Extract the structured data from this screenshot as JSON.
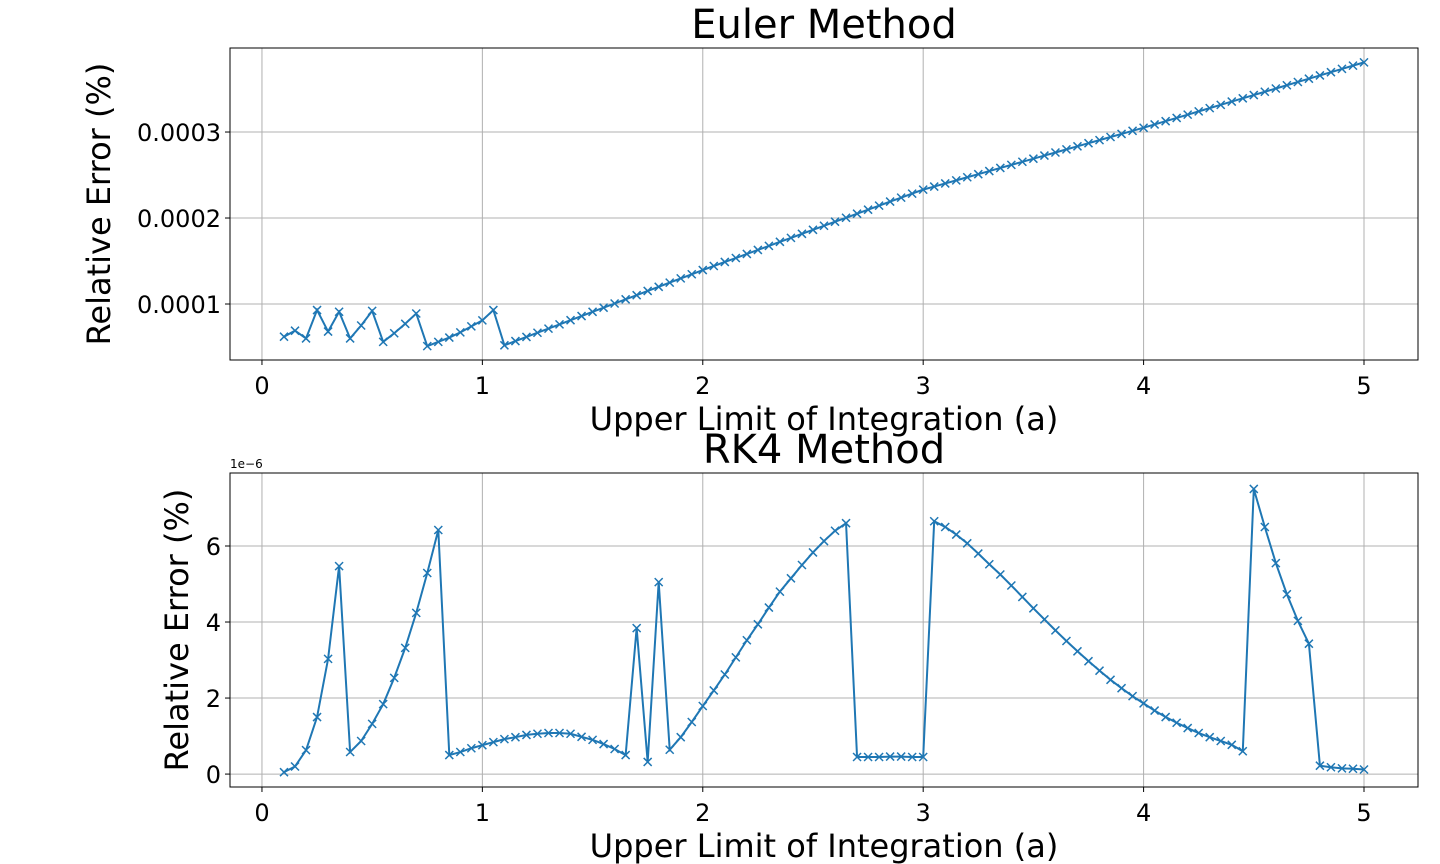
{
  "chart_data": [
    {
      "type": "line",
      "title": "Euler Method",
      "xlabel": "Upper Limit of Integration (a)",
      "ylabel": "Relative Error (%)",
      "color": "#1f77b4",
      "marker": "x",
      "grid": true,
      "xlim": [
        -0.145,
        5.245
      ],
      "ylim": [
        3.49e-05,
        0.0003977
      ],
      "xticks": [
        0,
        1,
        2,
        3,
        4,
        5
      ],
      "yticks": [
        0.0001,
        0.0002,
        0.0003
      ],
      "x": [
        0.1,
        0.15,
        0.2,
        0.25,
        0.3,
        0.35,
        0.4,
        0.45,
        0.5,
        0.55,
        0.6,
        0.65,
        0.7,
        0.75,
        0.8,
        0.85,
        0.9,
        0.95,
        1.0,
        1.05,
        1.1,
        1.15,
        1.2,
        1.25,
        1.3,
        1.35,
        1.4,
        1.45,
        1.5,
        1.55,
        1.6,
        1.65,
        1.7,
        1.75,
        1.8,
        1.85,
        1.9,
        1.95,
        2.0,
        2.05,
        2.1,
        2.15,
        2.2,
        2.25,
        2.3,
        2.35,
        2.4,
        2.45,
        2.5,
        2.55,
        2.6,
        2.65,
        2.7,
        2.75,
        2.8,
        2.85,
        2.9,
        2.95,
        3.0,
        3.05,
        3.1,
        3.15,
        3.2,
        3.25,
        3.3,
        3.35,
        3.4,
        3.45,
        3.5,
        3.55,
        3.6,
        3.65,
        3.7,
        3.75,
        3.8,
        3.85,
        3.9,
        3.95,
        4.0,
        4.05,
        4.1,
        4.15,
        4.2,
        4.25,
        4.3,
        4.35,
        4.4,
        4.45,
        4.5,
        4.55,
        4.6,
        4.65,
        4.7,
        4.75,
        4.8,
        4.85,
        4.9,
        4.95,
        5.0
      ],
      "values": [
        6.2e-05,
        6.9e-05,
        6e-05,
        9.3e-05,
        6.8e-05,
        9.1e-05,
        6e-05,
        7.5e-05,
        9.2e-05,
        5.6e-05,
        6.6e-05,
        7.7e-05,
        8.9e-05,
        5.1e-05,
        5.6e-05,
        6.1e-05,
        6.7e-05,
        7.4e-05,
        8.1e-05,
        9.3e-05,
        5.2e-05,
        5.69e-05,
        6.17e-05,
        6.66e-05,
        7.14e-05,
        7.63e-05,
        8.12e-05,
        8.6e-05,
        9.09e-05,
        9.57e-05,
        0.0001006,
        0.0001055,
        0.0001103,
        0.0001152,
        0.00012,
        0.0001249,
        0.0001298,
        0.0001346,
        0.0001395,
        0.0001442,
        0.0001489,
        0.0001535,
        0.0001582,
        0.0001629,
        0.0001676,
        0.0001723,
        0.0001769,
        0.0001816,
        0.0001863,
        0.000191,
        0.0001957,
        0.0002003,
        0.000205,
        0.0002097,
        0.0002144,
        0.0002191,
        0.0002237,
        0.0002284,
        0.000233,
        0.0002366,
        0.0002402,
        0.0002438,
        0.0002474,
        0.000251,
        0.0002546,
        0.0002582,
        0.0002618,
        0.0002654,
        0.000269,
        0.0002726,
        0.0002762,
        0.0002798,
        0.0002834,
        0.000287,
        0.0002906,
        0.0002942,
        0.0002978,
        0.0003014,
        0.000305,
        0.0003088,
        0.0003126,
        0.0003164,
        0.0003202,
        0.000324,
        0.0003278,
        0.0003316,
        0.0003354,
        0.0003392,
        0.000343,
        0.0003468,
        0.0003506,
        0.0003544,
        0.0003582,
        0.000362,
        0.0003658,
        0.0003696,
        0.0003734,
        0.0003772,
        0.000381
      ]
    },
    {
      "type": "line",
      "title": "RK4 Method",
      "xlabel": "Upper Limit of Integration (a)",
      "ylabel": "Relative Error (%)",
      "offset_text": "1e−6",
      "color": "#1f77b4",
      "marker": "x",
      "grid": true,
      "xlim": [
        -0.145,
        5.245
      ],
      "ylim": [
        -0.34,
        7.92
      ],
      "xticks": [
        0,
        1,
        2,
        3,
        4,
        5
      ],
      "yticks": [
        0,
        2,
        4,
        6
      ],
      "x": [
        0.1,
        0.15,
        0.2,
        0.25,
        0.3,
        0.35,
        0.4,
        0.45,
        0.5,
        0.55,
        0.6,
        0.65,
        0.7,
        0.75,
        0.8,
        0.85,
        0.9,
        0.95,
        1.0,
        1.05,
        1.1,
        1.15,
        1.2,
        1.25,
        1.3,
        1.35,
        1.4,
        1.45,
        1.5,
        1.55,
        1.6,
        1.65,
        1.7,
        1.75,
        1.8,
        1.85,
        1.9,
        1.95,
        2.0,
        2.05,
        2.1,
        2.15,
        2.2,
        2.25,
        2.3,
        2.35,
        2.4,
        2.45,
        2.5,
        2.55,
        2.6,
        2.65,
        2.7,
        2.75,
        2.8,
        2.85,
        2.9,
        2.95,
        3.0,
        3.05,
        3.1,
        3.15,
        3.2,
        3.25,
        3.3,
        3.35,
        3.4,
        3.45,
        3.5,
        3.55,
        3.6,
        3.65,
        3.7,
        3.75,
        3.8,
        3.85,
        3.9,
        3.95,
        4.0,
        4.05,
        4.1,
        4.15,
        4.2,
        4.25,
        4.3,
        4.35,
        4.4,
        4.45,
        4.5,
        4.55,
        4.6,
        4.65,
        4.7,
        4.75,
        4.8,
        4.85,
        4.9,
        4.95,
        5.0
      ],
      "values": [
        0.05,
        0.2,
        0.63,
        1.5,
        3.03,
        5.47,
        0.58,
        0.87,
        1.32,
        1.84,
        2.53,
        3.32,
        4.24,
        5.29,
        6.42,
        0.5,
        0.58,
        0.68,
        0.76,
        0.84,
        0.92,
        0.97,
        1.03,
        1.06,
        1.08,
        1.08,
        1.06,
        0.98,
        0.9,
        0.79,
        0.66,
        0.5,
        3.84,
        0.32,
        5.05,
        0.64,
        0.97,
        1.37,
        1.79,
        2.2,
        2.62,
        3.07,
        3.52,
        3.94,
        4.38,
        4.8,
        5.15,
        5.5,
        5.83,
        6.13,
        6.4,
        6.6,
        0.45,
        0.45,
        0.45,
        0.46,
        0.46,
        0.45,
        0.45,
        6.65,
        6.5,
        6.3,
        6.07,
        5.8,
        5.52,
        5.25,
        4.96,
        4.66,
        4.36,
        4.07,
        3.78,
        3.5,
        3.23,
        2.97,
        2.72,
        2.48,
        2.26,
        2.05,
        1.86,
        1.67,
        1.5,
        1.35,
        1.21,
        1.08,
        0.97,
        0.87,
        0.77,
        0.6,
        7.5,
        6.5,
        5.55,
        4.73,
        4.03,
        3.43,
        0.22,
        0.18,
        0.15,
        0.14,
        0.12
      ]
    }
  ]
}
